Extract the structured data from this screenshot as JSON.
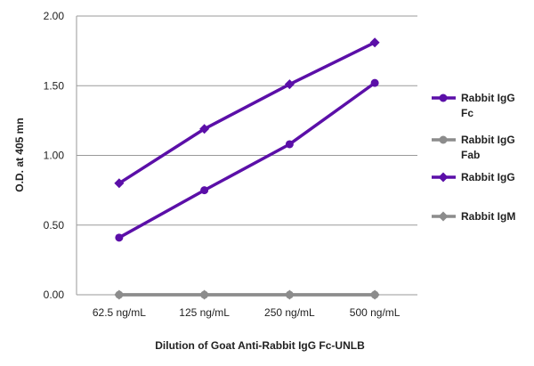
{
  "chart_data": {
    "type": "line",
    "title": "",
    "xlabel": "Dilution of Goat Anti-Rabbit IgG Fc-UNLB",
    "ylabel": "O.D. at 405 mn",
    "categories": [
      "62.5 ng/mL",
      "125 ng/mL",
      "250 ng/mL",
      "500 ng/mL"
    ],
    "ylim": [
      0,
      2.0
    ],
    "yticks": [
      "0.00",
      "0.50",
      "1.00",
      "1.50",
      "2.00"
    ],
    "ytick_values": [
      0,
      0.5,
      1.0,
      1.5,
      2.0
    ],
    "grid": "horizontal",
    "legend_position": "right",
    "series": [
      {
        "name": "Rabbit IgG Fc",
        "legend_lines": [
          "Rabbit IgG",
          "Fc"
        ],
        "marker": "circle",
        "color": "#5B0FA8",
        "values": [
          0.41,
          0.75,
          1.08,
          1.52
        ]
      },
      {
        "name": "Rabbit IgG Fab",
        "legend_lines": [
          "Rabbit IgG",
          "Fab"
        ],
        "marker": "circle",
        "color": "#8C8C8C",
        "values": [
          0.0,
          0.0,
          0.0,
          0.0
        ]
      },
      {
        "name": "Rabbit IgG",
        "legend_lines": [
          "Rabbit IgG"
        ],
        "marker": "diamond",
        "color": "#5B0FA8",
        "values": [
          0.8,
          1.19,
          1.51,
          1.81
        ]
      },
      {
        "name": "Rabbit IgM",
        "legend_lines": [
          "Rabbit IgM"
        ],
        "marker": "diamond",
        "color": "#8C8C8C",
        "values": [
          0.0,
          0.0,
          0.0,
          0.0
        ]
      }
    ]
  }
}
